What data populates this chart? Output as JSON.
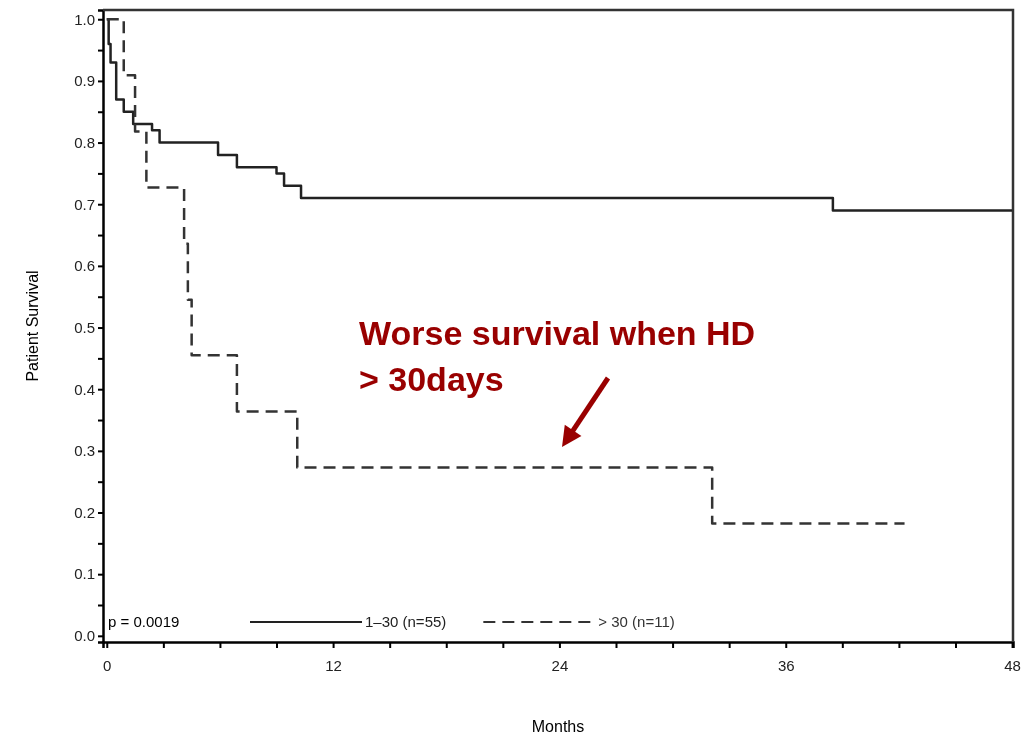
{
  "chart_data": {
    "type": "step",
    "xlabel": "Months",
    "ylabel": "Patient Survival",
    "xlim": [
      -0.2,
      48.05
    ],
    "ylim": [
      -0.01,
      1.015
    ],
    "xticks": [
      0,
      {
        "value": 3,
        "label": null
      },
      {
        "value": 6,
        "label": null
      },
      {
        "value": 9,
        "label": null
      },
      12,
      {
        "value": 15,
        "label": null
      },
      {
        "value": 18,
        "label": null
      },
      {
        "value": 21,
        "label": null
      },
      24,
      {
        "value": 27,
        "label": null
      },
      {
        "value": 30,
        "label": null
      },
      {
        "value": 33,
        "label": null
      },
      36,
      {
        "value": 39,
        "label": null
      },
      {
        "value": 42,
        "label": null
      },
      {
        "value": 45,
        "label": null
      },
      48
    ],
    "yticks": [
      {
        "value": 0,
        "label": "0.0"
      },
      {
        "value": 0.05,
        "label": null
      },
      {
        "value": 0.1,
        "label": "0.1"
      },
      {
        "value": 0.15,
        "label": null
      },
      {
        "value": 0.2,
        "label": "0.2"
      },
      {
        "value": 0.25,
        "label": null
      },
      {
        "value": 0.3,
        "label": "0.3"
      },
      {
        "value": 0.35,
        "label": null
      },
      {
        "value": 0.4,
        "label": "0.4"
      },
      {
        "value": 0.45,
        "label": null
      },
      {
        "value": 0.5,
        "label": "0.5"
      },
      {
        "value": 0.55,
        "label": null
      },
      {
        "value": 0.6,
        "label": "0.6"
      },
      {
        "value": 0.65,
        "label": null
      },
      {
        "value": 0.7,
        "label": "0.7"
      },
      {
        "value": 0.75,
        "label": null
      },
      {
        "value": 0.8,
        "label": "0.8"
      },
      {
        "value": 0.85,
        "label": null
      },
      {
        "value": 0.9,
        "label": "0.9"
      },
      {
        "value": 0.95,
        "label": null
      },
      {
        "value": 1,
        "label": "1.0"
      }
    ],
    "legend": "bottom",
    "marker": "none",
    "series": [
      {
        "name": "1–30 (n=55)",
        "color": "#222222",
        "line_style": "solid",
        "x": [
          0,
          0.1,
          0.2,
          0.5,
          0.9,
          1.4,
          2.4,
          2.8,
          5.9,
          6.9,
          9.0,
          9.4,
          10.3,
          38.5,
          48
        ],
        "values": [
          1,
          0.96,
          0.93,
          0.87,
          0.85,
          0.83,
          0.82,
          0.8,
          0.78,
          0.76,
          0.75,
          0.73,
          0.71,
          0.69,
          0.69
        ]
      },
      {
        "name": "> 30 (n=11)",
        "color": "#333333",
        "line_style": "dashed",
        "x": [
          0,
          0.9,
          1.5,
          2.1,
          4.1,
          4.3,
          4.5,
          6.9,
          10.1,
          32.1,
          42.3
        ],
        "values": [
          1,
          0.909,
          0.818,
          0.727,
          0.636,
          0.545,
          0.455,
          0.364,
          0.273,
          0.182,
          0.182
        ]
      }
    ],
    "annotations": [
      "p = 0.0019",
      "Worse survival when HD\n> 30days"
    ]
  }
}
